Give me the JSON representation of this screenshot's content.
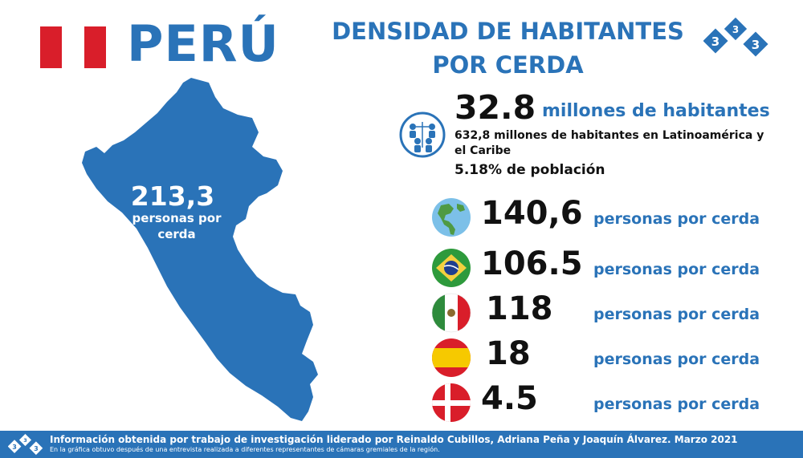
{
  "header": {
    "country": "PERÚ",
    "title_line1": "DENSIDAD DE HABITANTES",
    "title_line2": "POR CERDA",
    "logo_digits": [
      "3",
      "3",
      "3"
    ]
  },
  "colors": {
    "brand": "#2a73b8",
    "flag_red": "#d91e2a"
  },
  "map": {
    "value": "213,3",
    "label_line1": "personas por",
    "label_line2": "cerda"
  },
  "population": {
    "value": "32.8",
    "unit": "millones de habitantes",
    "subtitle": "632,8 millones de habitantes en Latinoamérica y el Caribe",
    "percent": "5.18% de población",
    "icon": "people-network-icon"
  },
  "rows": [
    {
      "icon": "globe-americas-icon",
      "value": "140,6",
      "label": "personas por cerda"
    },
    {
      "icon": "flag-brazil-icon",
      "value": "106.5",
      "label": "personas por cerda"
    },
    {
      "icon": "flag-mexico-icon",
      "value": "118",
      "label": "personas por cerda"
    },
    {
      "icon": "flag-spain-icon",
      "value": "18",
      "label": "personas por cerda"
    },
    {
      "icon": "flag-denmark-icon",
      "value": "4.5",
      "label": "personas por cerda"
    }
  ],
  "footer": {
    "main": "Información obtenida por trabajo de investigación liderado por Reinaldo Cubillos, Adriana Peña y Joaquín Álvarez.",
    "date": "Marzo 2021",
    "note": "En la gráfica obtuvo después de una entrevista realizada a diferentes representantes de cámaras gremiales de la región."
  }
}
